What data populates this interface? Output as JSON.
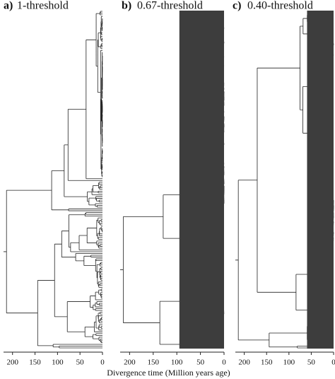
{
  "chart_data": [
    {
      "type": "tree",
      "label": "a)",
      "title": "1-threshold",
      "xlim": [
        220,
        0
      ],
      "xticks": [
        200,
        150,
        100,
        50,
        0
      ]
    },
    {
      "type": "tree",
      "label": "b)",
      "title": "0.67-threshold",
      "xlim": [
        220,
        0
      ],
      "xticks": [
        200,
        150,
        100,
        50,
        0
      ],
      "xlabel": "Divergence time (Million years age)"
    },
    {
      "type": "tree",
      "label": "c)",
      "title": "0.40-threshold",
      "xlim": [
        220,
        0
      ],
      "xticks": [
        200,
        150,
        100,
        50,
        0
      ]
    }
  ]
}
